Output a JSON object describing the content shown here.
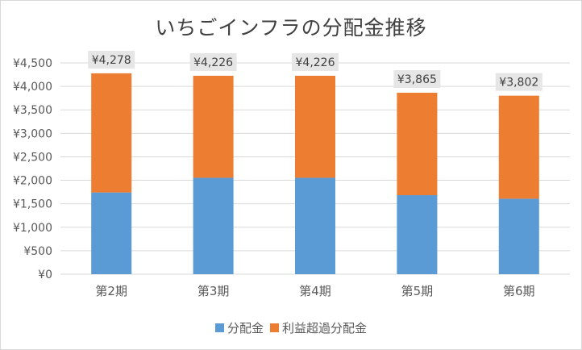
{
  "chart_data": {
    "type": "bar",
    "stacked": true,
    "title": "いちごインフラの分配金推移",
    "categories": [
      "第2期",
      "第3期",
      "第4期",
      "第5期",
      "第6期"
    ],
    "series": [
      {
        "name": "分配金",
        "color": "#5b9bd5",
        "values": [
          1741,
          2053,
          2053,
          1683,
          1607
        ]
      },
      {
        "name": "利益超過分配金",
        "color": "#ed7d31",
        "values": [
          2537,
          2173,
          2173,
          2182,
          2195
        ]
      }
    ],
    "totals": [
      "¥4,278",
      "¥4,226",
      "¥4,226",
      "¥3,865",
      "¥3,802"
    ],
    "y_ticks": [
      "¥0",
      "¥500",
      "¥1,000",
      "¥1,500",
      "¥2,000",
      "¥2,500",
      "¥3,000",
      "¥3,500",
      "¥4,000",
      "¥4,500"
    ],
    "ylim": [
      0,
      4500
    ],
    "grid": true,
    "legend_position": "bottom"
  }
}
